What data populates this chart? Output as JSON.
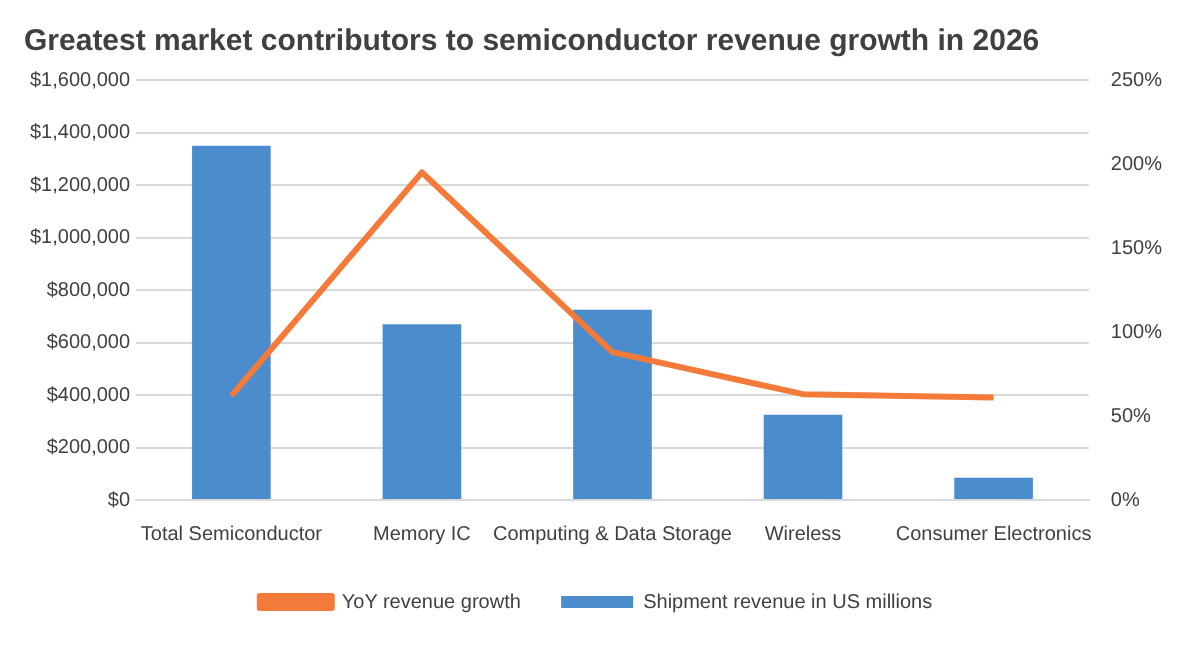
{
  "chart_data": {
    "type": "bar",
    "title": "Greatest market contributors to semiconductor revenue growth in 2026",
    "categories": [
      "Total Semiconductor",
      "Memory IC",
      "Computing & Data Storage",
      "Wireless",
      "Consumer Electronics"
    ],
    "series": [
      {
        "name": "Shipment revenue in US millions",
        "color": "#4a8ccc",
        "values": [
          1350000,
          670000,
          725000,
          325000,
          85000
        ]
      },
      {
        "name": "YoY revenue growth",
        "type": "line",
        "axis": "y2",
        "color": "#f47a3a",
        "marker": "none",
        "values": [
          62,
          195,
          88,
          63,
          61
        ]
      }
    ],
    "ylim": [
      0,
      1600000
    ],
    "yticks": [
      {
        "value": 0,
        "label": "$0"
      },
      {
        "value": 200000,
        "label": "$200,000"
      },
      {
        "value": 400000,
        "label": "$400,000"
      },
      {
        "value": 600000,
        "label": "$600,000"
      },
      {
        "value": 800000,
        "label": "$800,000"
      },
      {
        "value": 1000000,
        "label": "$1,000,000"
      },
      {
        "value": 1200000,
        "label": "$1,200,000"
      },
      {
        "value": 1400000,
        "label": "$1,400,000"
      },
      {
        "value": 1600000,
        "label": "$1,600,000"
      }
    ],
    "y2lim": [
      0,
      250
    ],
    "y2ticks": [
      {
        "value": 0,
        "label": "0%"
      },
      {
        "value": 50,
        "label": "50%"
      },
      {
        "value": 100,
        "label": "100%"
      },
      {
        "value": 150,
        "label": "150%"
      },
      {
        "value": 200,
        "label": "200%"
      },
      {
        "value": 250,
        "label": "250%"
      }
    ],
    "grid": "y",
    "legend": "bottom"
  }
}
